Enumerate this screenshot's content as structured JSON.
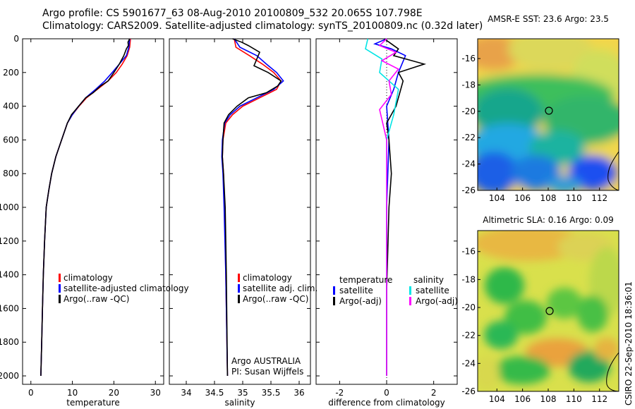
{
  "title_line1": "Argo profile: CS 5901677_63 08-Aug-2010 20100809_532 20.065S 107.798E",
  "title_line2": "Climatology: CARS2009. Satellite-adjusted climatology: synTS_20100809.nc (0.32d later)",
  "footer": "CSIRO 22-Sep-2010 18:36:01",
  "colors": {
    "climatology": "#ff0000",
    "satellite": "#0000ff",
    "argo": "#000000",
    "salinity_satellite": "#00e5e5",
    "salinity_argo": "#ff00ff"
  },
  "chart_data": [
    {
      "type": "line",
      "id": "temperature",
      "xlabel": "temperature",
      "xlim": [
        -2,
        32
      ],
      "xticks": [
        0,
        10,
        20,
        30
      ],
      "ylim": [
        0,
        2050
      ],
      "yticks": [
        0,
        200,
        400,
        600,
        800,
        1000,
        1200,
        1400,
        1600,
        1800,
        2000
      ],
      "yreversed": true,
      "legend": [
        "climatology",
        "satellite-adjusted climatology",
        "Argo(..raw -QC)"
      ],
      "series": [
        {
          "name": "climatology",
          "color": "#ff0000",
          "x": [
            24.0,
            23.8,
            23.2,
            22.0,
            20.6,
            18.6,
            16.0,
            13.4,
            11.6,
            10.0,
            8.8,
            7.4,
            6.0,
            5.0,
            4.3,
            3.7,
            3.3,
            3.0,
            2.8,
            2.6,
            2.4
          ],
          "y": [
            0,
            50,
            100,
            150,
            200,
            250,
            300,
            350,
            400,
            450,
            500,
            600,
            700,
            800,
            900,
            1000,
            1200,
            1400,
            1600,
            1800,
            2000
          ]
        },
        {
          "name": "satellite-adjusted climatology",
          "color": "#0000ff",
          "x": [
            23.8,
            23.6,
            23.0,
            21.3,
            19.6,
            17.8,
            15.6,
            13.2,
            11.5,
            10.0,
            8.8,
            7.4,
            6.0,
            5.0,
            4.3,
            3.7,
            3.3,
            3.0,
            2.8,
            2.6,
            2.4
          ],
          "y": [
            0,
            50,
            100,
            150,
            200,
            250,
            300,
            350,
            400,
            450,
            500,
            600,
            700,
            800,
            900,
            1000,
            1200,
            1400,
            1600,
            1800,
            2000
          ]
        },
        {
          "name": "Argo(..raw -QC)",
          "color": "#000000",
          "x": [
            23.8,
            23.4,
            23.5,
            23.0,
            22.4,
            21.3,
            20.0,
            18.6,
            16.8,
            15.0,
            13.2,
            11.5,
            9.8,
            8.8,
            7.4,
            6.0,
            5.0,
            4.3,
            3.7,
            3.3,
            3.0,
            2.8,
            2.6,
            2.4
          ],
          "y": [
            0,
            20,
            40,
            60,
            100,
            150,
            200,
            250,
            280,
            320,
            350,
            400,
            450,
            500,
            600,
            700,
            800,
            900,
            1000,
            1200,
            1400,
            1600,
            1800,
            2000
          ]
        }
      ]
    },
    {
      "type": "line",
      "id": "salinity",
      "xlabel": "salinity",
      "xlim": [
        33.7,
        36.2
      ],
      "xticks": [
        34,
        34.5,
        35,
        35.5,
        36
      ],
      "ylim": [
        0,
        2050
      ],
      "yreversed": true,
      "legend": [
        "climatology",
        "satellite adj. clim.",
        "Argo(..raw -QC)"
      ],
      "annotation": [
        "Argo AUSTRALIA",
        "PI: Susan Wijffels"
      ],
      "series": [
        {
          "name": "climatology",
          "color": "#ff0000",
          "x": [
            34.85,
            34.88,
            35.12,
            35.35,
            35.55,
            35.68,
            35.6,
            35.3,
            35.0,
            34.82,
            34.7,
            34.65,
            34.64,
            34.66,
            34.68,
            34.7,
            34.72,
            34.73
          ],
          "y": [
            0,
            50,
            100,
            150,
            200,
            250,
            300,
            350,
            400,
            450,
            500,
            600,
            700,
            800,
            1000,
            1400,
            1800,
            2000
          ]
        },
        {
          "name": "satellite adj. clim.",
          "color": "#0000ff",
          "x": [
            34.85,
            34.95,
            35.25,
            35.42,
            35.6,
            35.72,
            35.55,
            35.25,
            34.95,
            34.78,
            34.68,
            34.64,
            34.63,
            34.65,
            34.67,
            34.7,
            34.72,
            34.73
          ],
          "y": [
            0,
            50,
            100,
            150,
            200,
            250,
            300,
            350,
            400,
            450,
            500,
            600,
            700,
            800,
            1000,
            1400,
            1800,
            2000
          ]
        },
        {
          "name": "Argo(..raw -QC)",
          "color": "#000000",
          "x": [
            34.82,
            34.98,
            35.1,
            35.3,
            35.2,
            35.45,
            35.68,
            35.62,
            35.42,
            35.1,
            34.9,
            34.75,
            34.67,
            34.65,
            34.64,
            34.66,
            34.69,
            34.71,
            34.73
          ],
          "y": [
            0,
            20,
            40,
            80,
            160,
            200,
            250,
            280,
            320,
            350,
            400,
            450,
            500,
            600,
            700,
            800,
            1000,
            1400,
            2000
          ]
        }
      ]
    },
    {
      "type": "line",
      "id": "difference",
      "xlabel": "difference from climatology",
      "xlim": [
        -3,
        3
      ],
      "xticks": [
        -2,
        0,
        2
      ],
      "ylim": [
        0,
        2050
      ],
      "yreversed": true,
      "legend": [
        "temperature",
        "satellite",
        "Argo(-adj)",
        "salinity",
        "satellite",
        "Argo(-adj)"
      ],
      "series": [
        {
          "name": "satellite",
          "color": "#0000ff",
          "x": [
            0.0,
            -0.5,
            0.2,
            0.8,
            0.5,
            0.3,
            0.0,
            0.1,
            0.0,
            0.0,
            0.0
          ],
          "y": [
            0,
            30,
            60,
            100,
            200,
            300,
            400,
            600,
            1000,
            1500,
            2000
          ]
        },
        {
          "name": "Argo(-adj)",
          "color": "#000000",
          "x": [
            -0.1,
            0.2,
            0.5,
            0.3,
            1.6,
            0.5,
            0.7,
            0.6,
            0.4,
            0.0,
            0.1,
            0.2,
            0.1,
            0.0,
            0.0
          ],
          "y": [
            0,
            30,
            60,
            100,
            150,
            200,
            250,
            300,
            400,
            500,
            600,
            800,
            1000,
            1500,
            2000
          ]
        },
        {
          "name": "satellite",
          "color": "#00e5e5",
          "x": [
            -0.8,
            -0.9,
            -0.2,
            -0.3,
            0.5,
            0.3,
            0.0,
            0.0,
            0.0
          ],
          "y": [
            0,
            60,
            120,
            200,
            300,
            450,
            600,
            1000,
            2000
          ]
        },
        {
          "name": "Argo(-adj)",
          "color": "#ff00ff",
          "x": [
            0.0,
            -0.3,
            0.4,
            -0.2,
            0.5,
            0.1,
            0.2,
            -0.3,
            0.0,
            0.0
          ],
          "y": [
            0,
            40,
            80,
            130,
            180,
            250,
            330,
            420,
            600,
            2000
          ]
        }
      ]
    },
    {
      "type": "heatmap",
      "id": "sst_map",
      "title": "AMSR-E SST: 23.6 Argo: 23.5",
      "xlim": [
        102.5,
        113.5
      ],
      "xticks": [
        104,
        106,
        108,
        110,
        112
      ],
      "ylim": [
        -26,
        -14.5
      ],
      "yticks": [
        -16,
        -18,
        -20,
        -22,
        -24,
        -26
      ],
      "argo_position": [
        107.8,
        -20.065
      ]
    },
    {
      "type": "heatmap",
      "id": "sla_map",
      "title": "Altimetric SLA: 0.16 Argo: 0.09",
      "xlim": [
        102.5,
        113.5
      ],
      "xticks": [
        104,
        106,
        108,
        110,
        112
      ],
      "ylim": [
        -26,
        -14.5
      ],
      "yticks": [
        -16,
        -18,
        -20,
        -22,
        -24,
        -26
      ],
      "argo_position": [
        107.8,
        -20.065
      ]
    }
  ]
}
